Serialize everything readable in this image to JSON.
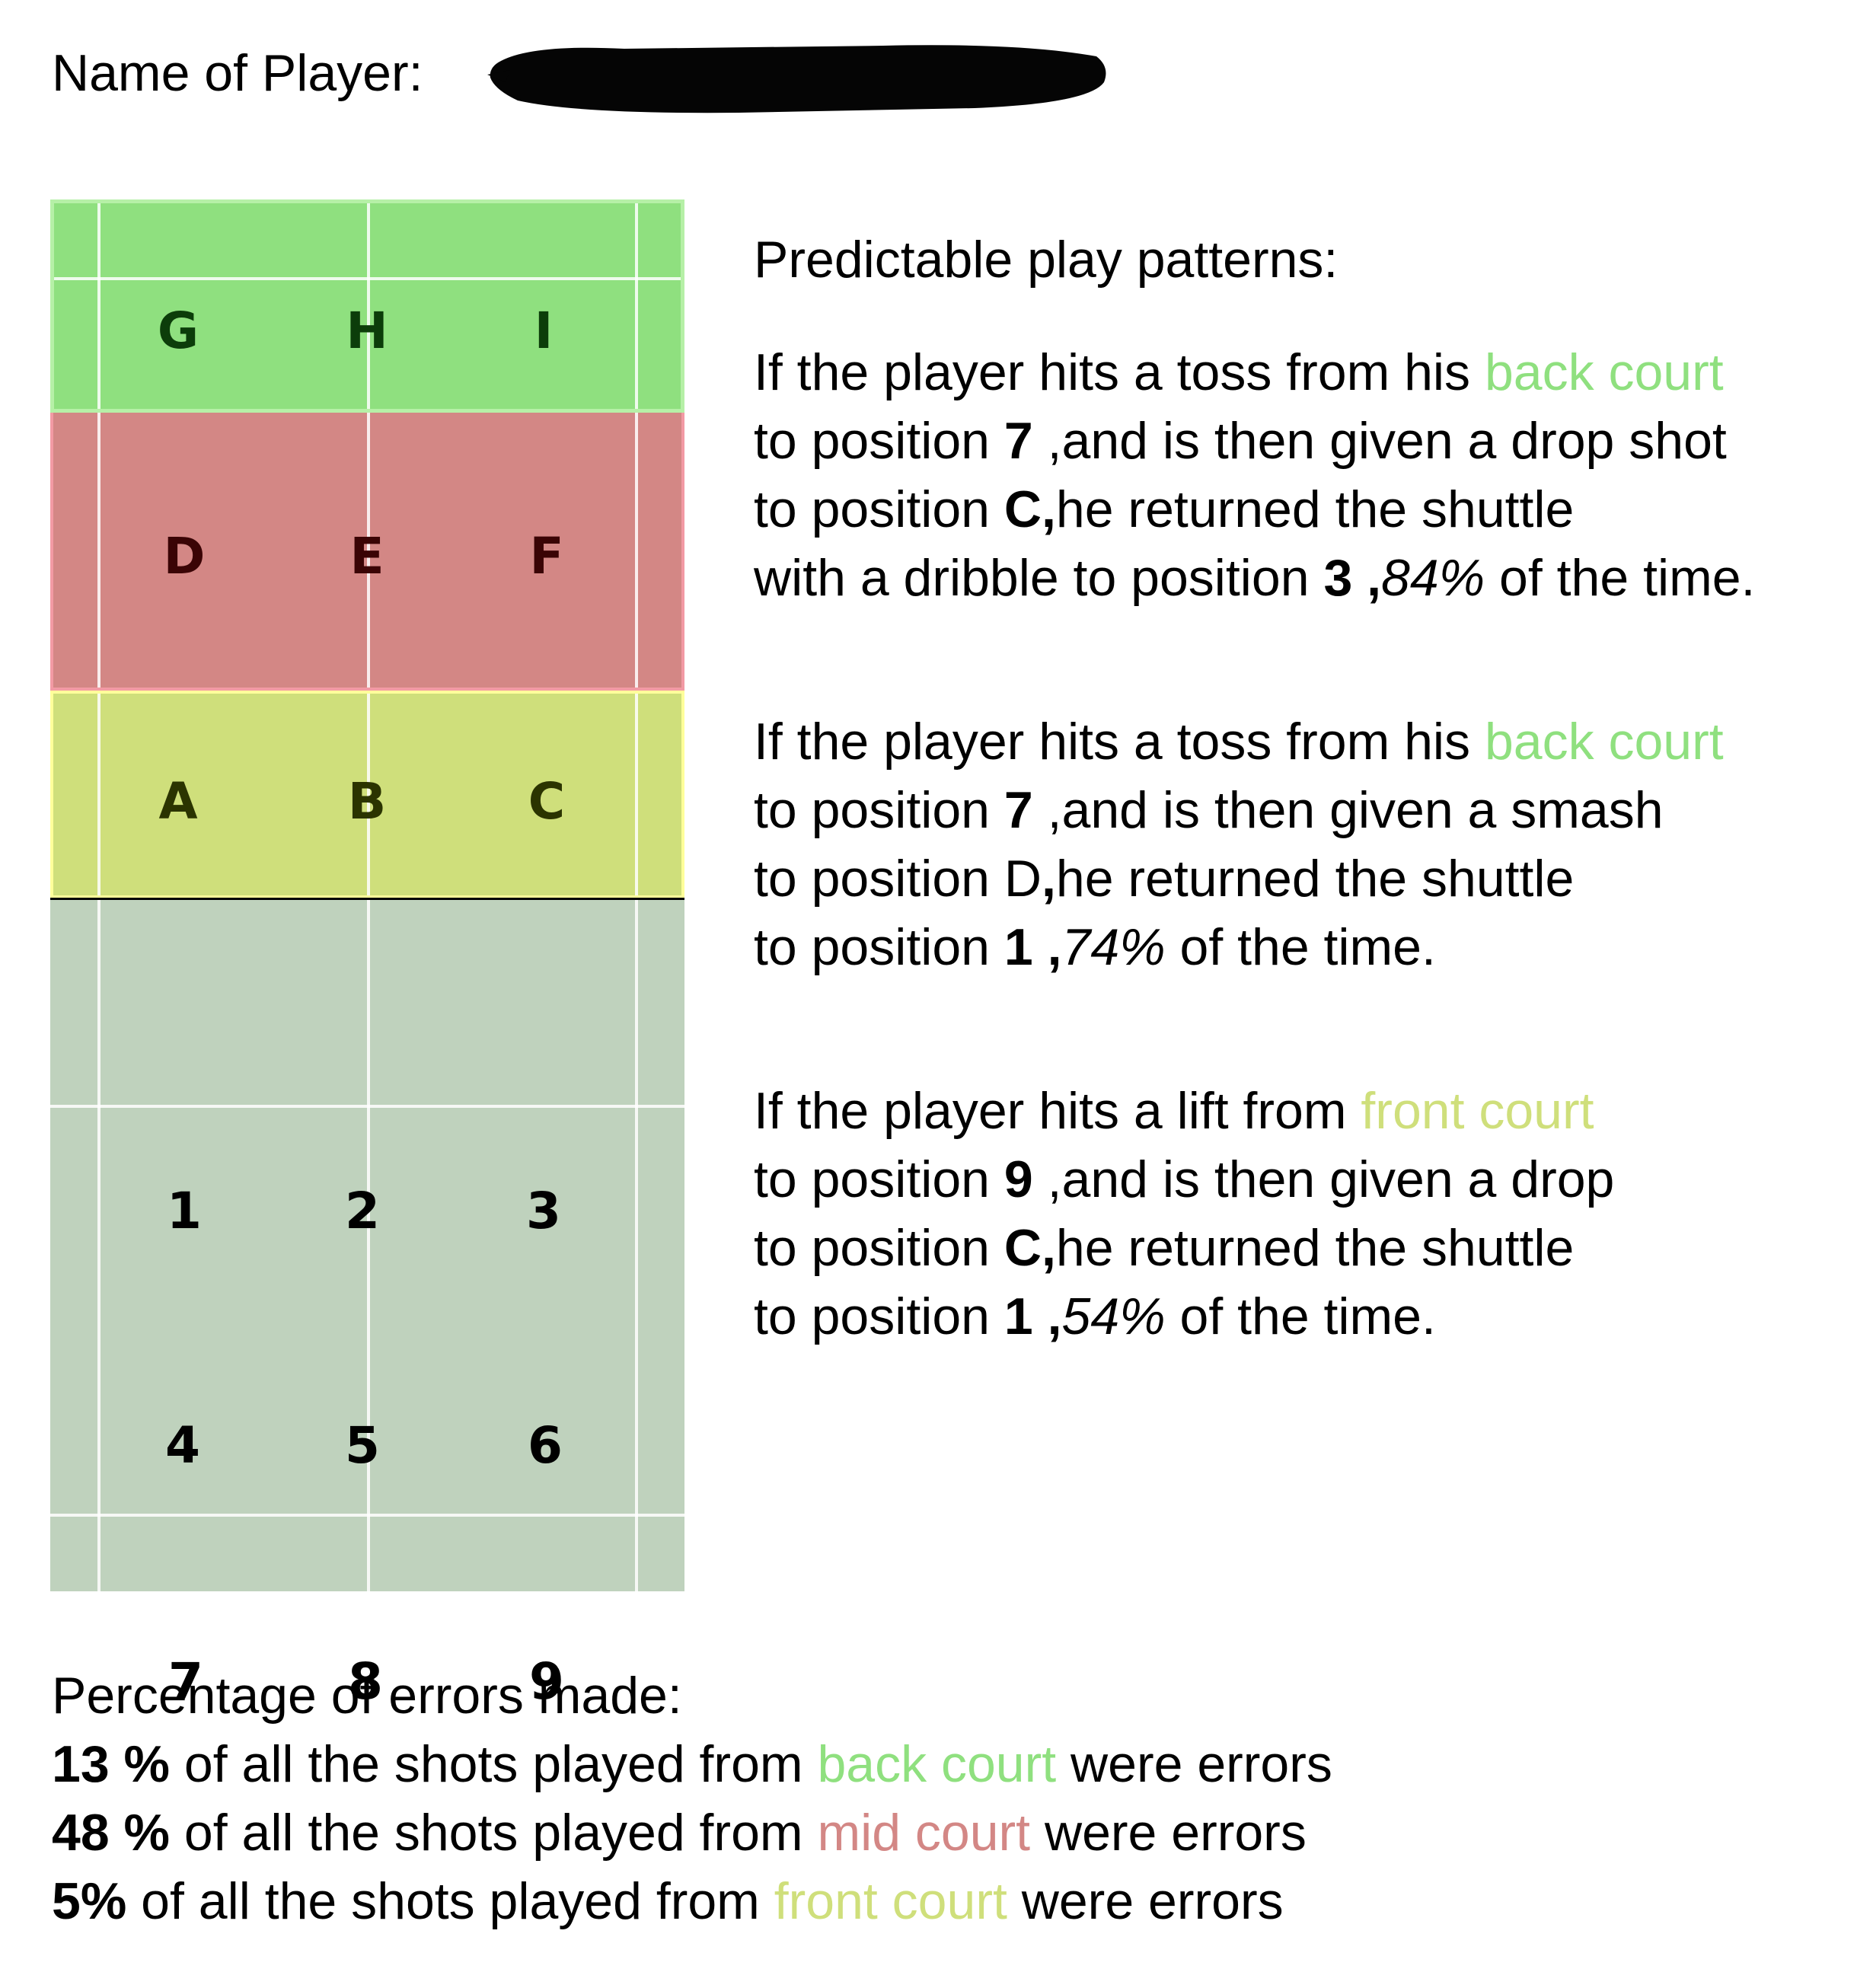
{
  "header": {
    "name_label": "Name of Player:"
  },
  "court": {
    "back_court_labels": [
      "G",
      "H",
      "I"
    ],
    "mid_court_labels": [
      "D",
      "E",
      "F"
    ],
    "front_court_labels": [
      "A",
      "B",
      "C"
    ],
    "own_court_labels": [
      "1",
      "2",
      "3",
      "4",
      "5",
      "6",
      "7",
      "8",
      "9"
    ],
    "colors": {
      "back_court": "#8fe07f",
      "mid_court": "#d38785",
      "front_court": "#cfdf7b",
      "own_court": "#bfd2bd"
    }
  },
  "patterns": {
    "heading": "Predictable play patterns:",
    "items": [
      {
        "l1_pre": "If the player hits a toss from his ",
        "l1_zone": "back court",
        "l2_pre": "to position ",
        "l2_num": "7",
        "l2_post": " ,and is then given a drop shot",
        "l3_pre": "to position ",
        "l3_bold": "C,",
        "l3_post": "he returned the shuttle",
        "l4_pre": "with a dribble to position ",
        "l4_num": "3 ,",
        "l4_pct": "84%",
        "l4_post": " of the time."
      },
      {
        "l1_pre": "If the player hits a toss from his ",
        "l1_zone": "back court",
        "l2_pre": "to position ",
        "l2_num": "7",
        "l2_post": " ,and is then given a smash",
        "l3_pre": "to position D",
        "l3_bold": ",",
        "l3_post": "he returned the shuttle",
        "l4_pre": "to position ",
        "l4_num": "1 ,",
        "l4_pct": "74%",
        "l4_post": " of the time."
      },
      {
        "l1_pre": "If the player hits a lift from ",
        "l1_zone": "front court",
        "l2_pre": "to position ",
        "l2_num": "9",
        "l2_post": " ,and is then given a drop",
        "l3_pre": "to position ",
        "l3_bold": "C,",
        "l3_post": "he returned the shuttle",
        "l4_pre": "to position ",
        "l4_num": "1 ,",
        "l4_pct": "54%",
        "l4_post": " of the time."
      }
    ]
  },
  "errors": {
    "heading": "Percentage of errors made:",
    "rows": [
      {
        "pct": "13 %",
        "pre": " of all the shots played from ",
        "zone": "back court",
        "post": " were errors"
      },
      {
        "pct": "48 %",
        "pre": " of all the shots played from ",
        "zone": "mid court",
        "post": " were errors"
      },
      {
        "pct": "5%",
        "pre": " of all the shots played from ",
        "zone": "front court",
        "post": " were errors"
      }
    ]
  }
}
